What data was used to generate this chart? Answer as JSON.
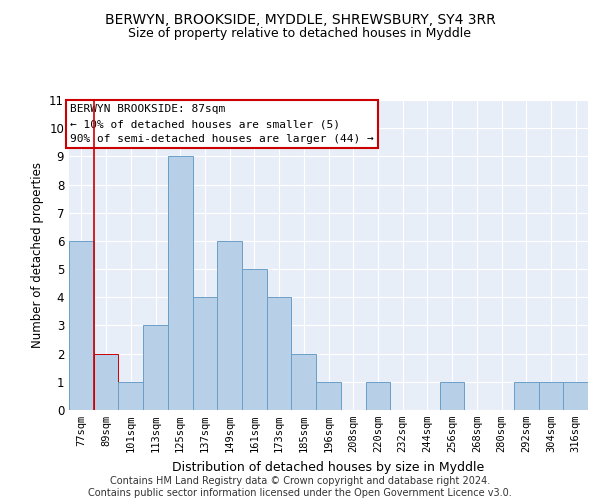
{
  "title": "BERWYN, BROOKSIDE, MYDDLE, SHREWSBURY, SY4 3RR",
  "subtitle": "Size of property relative to detached houses in Myddle",
  "xlabel": "Distribution of detached houses by size in Myddle",
  "ylabel": "Number of detached properties",
  "categories": [
    "77sqm",
    "89sqm",
    "101sqm",
    "113sqm",
    "125sqm",
    "137sqm",
    "149sqm",
    "161sqm",
    "173sqm",
    "185sqm",
    "196sqm",
    "208sqm",
    "220sqm",
    "232sqm",
    "244sqm",
    "256sqm",
    "268sqm",
    "280sqm",
    "292sqm",
    "304sqm",
    "316sqm"
  ],
  "values": [
    6,
    2,
    1,
    3,
    9,
    4,
    6,
    5,
    4,
    2,
    1,
    0,
    1,
    0,
    0,
    1,
    0,
    0,
    1,
    1,
    1
  ],
  "bar_color": "#b8cfe8",
  "bar_edge_color": "#6a9fc8",
  "highlight_bar_index": 1,
  "highlight_bar_edge_color": "#cc0000",
  "annotation_text": "BERWYN BROOKSIDE: 87sqm\n← 10% of detached houses are smaller (5)\n90% of semi-detached houses are larger (44) →",
  "vline_x": 0.5,
  "ylim": [
    0,
    11
  ],
  "yticks": [
    0,
    1,
    2,
    3,
    4,
    5,
    6,
    7,
    8,
    9,
    10,
    11
  ],
  "background_color": "#e8eef8",
  "grid_color": "#ffffff",
  "footer": "Contains HM Land Registry data © Crown copyright and database right 2024.\nContains public sector information licensed under the Open Government Licence v3.0.",
  "title_fontsize": 10,
  "subtitle_fontsize": 9,
  "xlabel_fontsize": 9,
  "ylabel_fontsize": 8.5,
  "annotation_fontsize": 8,
  "footer_fontsize": 7,
  "tick_fontsize": 7.5
}
